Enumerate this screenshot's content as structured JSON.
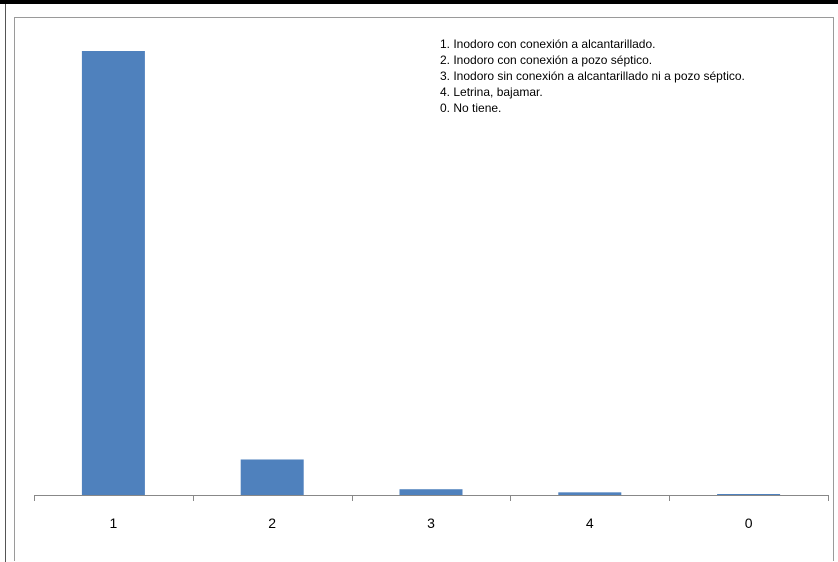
{
  "chart_data": {
    "type": "bar",
    "categories": [
      "1",
      "2",
      "3",
      "4",
      "0"
    ],
    "values": [
      1000,
      80,
      13,
      6,
      2
    ],
    "ylim": [
      0,
      1000
    ],
    "legend_position": "top-right",
    "annotation_lines": [
      "1. Inodoro con conexión a alcantarillado.",
      "2. Inodoro con conexión a pozo séptico.",
      "3. Inodoro sin conexión a alcantarillado ni a pozo séptico.",
      "4. Letrina, bajamar.",
      "0. No tiene."
    ],
    "grid": false,
    "colors": {
      "bar": "#4F81BD",
      "axis": "#888888"
    }
  }
}
